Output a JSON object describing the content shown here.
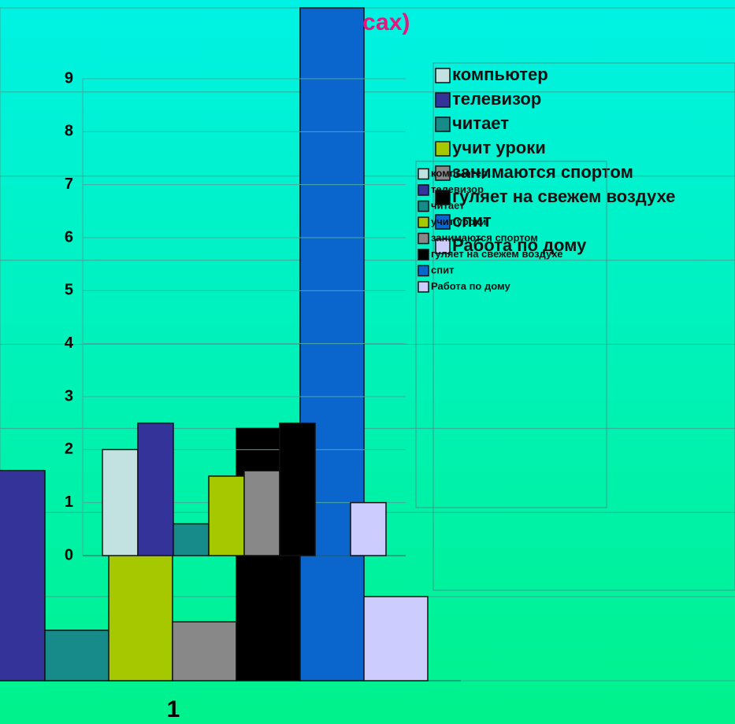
{
  "chart_data": [
    {
      "type": "bar",
      "ylim": [
        0,
        9
      ],
      "yticks": [
        0,
        1,
        2,
        3,
        4,
        5,
        6,
        7,
        8,
        9
      ],
      "grid": true,
      "legend": "right",
      "series": [
        {
          "name": "компьютер",
          "color": "#c2e2e2",
          "values": [
            2
          ]
        },
        {
          "name": "телевизор",
          "color": "#333399",
          "values": [
            2.5
          ]
        },
        {
          "name": "читает",
          "color": "#178a8a",
          "values": [
            0.6
          ]
        },
        {
          "name": "учит уроки",
          "color": "#a6c800",
          "values": [
            1.5
          ]
        },
        {
          "name": "занимаются спортом",
          "color": "#888888",
          "values": [
            1.6
          ]
        },
        {
          "name": "гуляет на свежем воздухе",
          "color": "#000000",
          "values": [
            2.5
          ]
        },
        {
          "name": "спит",
          "color": "#0a66cc",
          "values": [
            null
          ]
        },
        {
          "name": "Работа по дому",
          "color": "#ccccff",
          "values": [
            1
          ]
        }
      ]
    },
    {
      "type": "bar",
      "title": "сах)",
      "categories": [
        "1"
      ],
      "ylim": [
        0,
        8
      ],
      "yticks": [
        0,
        1,
        2,
        3,
        4,
        5,
        6,
        7,
        8
      ],
      "grid": true,
      "legend": "right",
      "series": [
        {
          "name": "компьютер",
          "color": "#c2e2e2",
          "values": [
            null
          ]
        },
        {
          "name": "телевизор",
          "color": "#333399",
          "values": [
            2.5
          ]
        },
        {
          "name": "читает",
          "color": "#178a8a",
          "values": [
            0.6
          ]
        },
        {
          "name": "учит уроки",
          "color": "#a6c800",
          "values": [
            1.5
          ]
        },
        {
          "name": "занимаются спортом",
          "color": "#888888",
          "values": [
            0.7
          ]
        },
        {
          "name": "гуляет на свежем воздухе",
          "color": "#000000",
          "values": [
            3
          ]
        },
        {
          "name": "спит",
          "color": "#0a66cc",
          "values": [
            8
          ]
        },
        {
          "name": "Работа по дому",
          "color": "#ccccff",
          "values": [
            1
          ]
        }
      ]
    }
  ]
}
